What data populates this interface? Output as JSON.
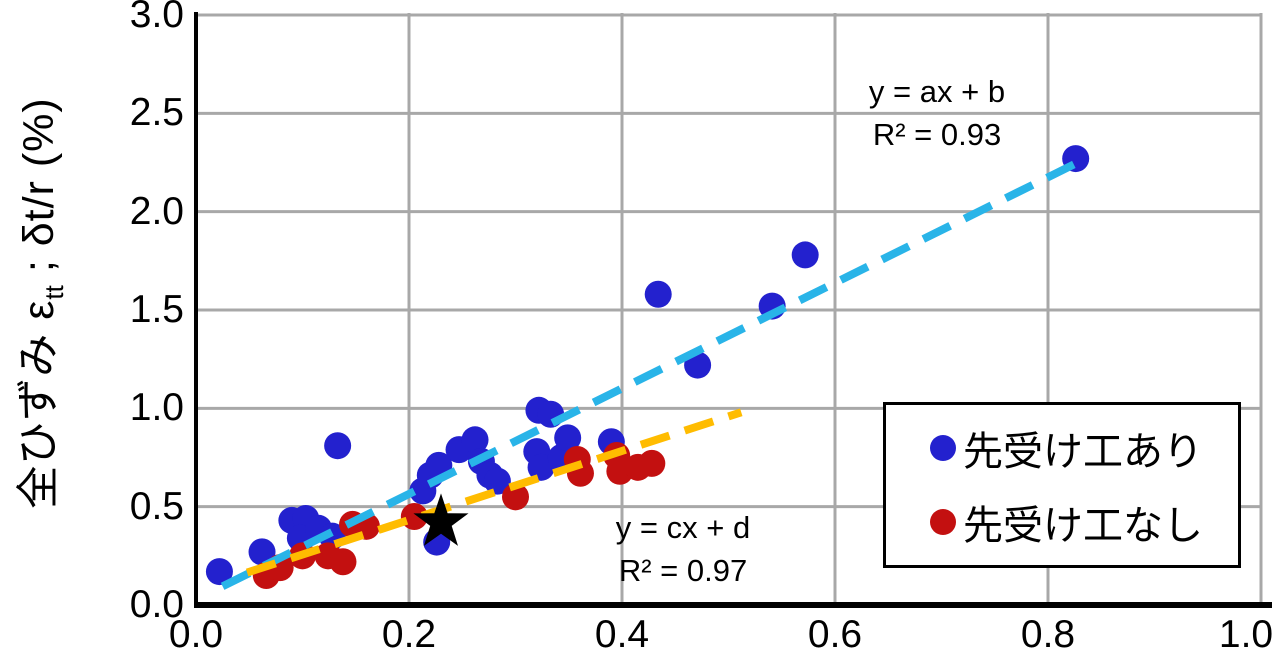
{
  "chart_data": {
    "type": "scatter",
    "title": "",
    "xlabel": "",
    "ylabel": "全ひずみ εtt ; δt/r (%)",
    "ylabel_parts": {
      "prefix": "全ひずみ ε",
      "subscript": "tt",
      "suffix": " ; δt/r (%)"
    },
    "xlim": [
      0.0,
      1.0
    ],
    "ylim": [
      0.0,
      3.0
    ],
    "x_ticks": [
      "0.0",
      "0.2",
      "0.4",
      "0.6",
      "0.8",
      "1.0"
    ],
    "y_ticks": [
      "0.0",
      "0.5",
      "1.0",
      "1.5",
      "2.0",
      "2.5",
      "3.0"
    ],
    "grid": true,
    "legend_position": "right-middle",
    "colors": {
      "grid": "#A8A8A8",
      "axis": "#000000",
      "background": "#FFFFFF"
    },
    "series": [
      {
        "name": "先受け工あり",
        "color": "#2321CE",
        "marker": "circle",
        "points": [
          [
            0.022,
            0.17
          ],
          [
            0.062,
            0.27
          ],
          [
            0.09,
            0.43
          ],
          [
            0.103,
            0.44
          ],
          [
            0.098,
            0.34
          ],
          [
            0.115,
            0.39
          ],
          [
            0.128,
            0.35
          ],
          [
            0.133,
            0.81
          ],
          [
            0.213,
            0.58
          ],
          [
            0.22,
            0.66
          ],
          [
            0.228,
            0.71
          ],
          [
            0.226,
            0.32
          ],
          [
            0.247,
            0.79
          ],
          [
            0.262,
            0.84
          ],
          [
            0.268,
            0.73
          ],
          [
            0.276,
            0.66
          ],
          [
            0.283,
            0.63
          ],
          [
            0.322,
            0.99
          ],
          [
            0.333,
            0.97
          ],
          [
            0.32,
            0.78
          ],
          [
            0.324,
            0.7
          ],
          [
            0.343,
            0.75
          ],
          [
            0.349,
            0.85
          ],
          [
            0.39,
            0.83
          ],
          [
            0.434,
            1.58
          ],
          [
            0.471,
            1.22
          ],
          [
            0.541,
            1.52
          ],
          [
            0.572,
            1.78
          ],
          [
            0.826,
            2.27
          ]
        ]
      },
      {
        "name": "先受け工なし",
        "color": "#C31010",
        "marker": "circle",
        "points": [
          [
            0.066,
            0.15
          ],
          [
            0.079,
            0.19
          ],
          [
            0.1,
            0.25
          ],
          [
            0.124,
            0.25
          ],
          [
            0.138,
            0.22
          ],
          [
            0.147,
            0.41
          ],
          [
            0.16,
            0.4
          ],
          [
            0.205,
            0.45
          ],
          [
            0.3,
            0.55
          ],
          [
            0.358,
            0.74
          ],
          [
            0.361,
            0.67
          ],
          [
            0.395,
            0.76
          ],
          [
            0.398,
            0.68
          ],
          [
            0.415,
            0.7
          ],
          [
            0.428,
            0.72
          ]
        ]
      }
    ],
    "special_point": {
      "marker": "star",
      "color": "#000000",
      "x": 0.23,
      "y": 0.42
    },
    "trendlines": [
      {
        "series": "先受け工あり",
        "color": "#29B4E8",
        "style": "dashed",
        "x1": 0.025,
        "y1": 0.095,
        "x2": 0.828,
        "y2": 2.25,
        "equation": "y = ax + b",
        "r_squared": "R² = 0.93"
      },
      {
        "series": "先受け工なし",
        "color": "#FFBC00",
        "style": "dashed",
        "x1": 0.048,
        "y1": 0.165,
        "x2": 0.512,
        "y2": 0.98,
        "equation": "y = cx + d",
        "r_squared": "R² = 0.97"
      }
    ]
  }
}
